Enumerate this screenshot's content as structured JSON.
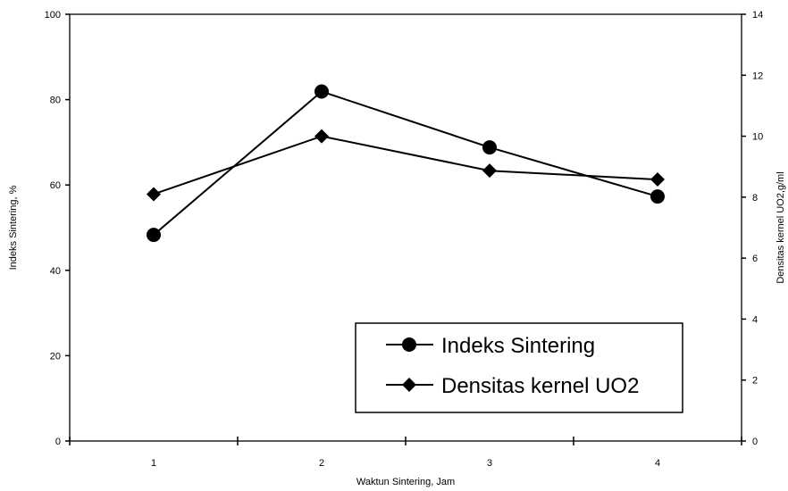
{
  "chart_data": {
    "type": "line",
    "title": "",
    "xlabel": "Waktun Sintering, Jam",
    "ylabel": "Indeks Sintering, %",
    "y2label": "Densitas  kernel UO2,g/ml",
    "x_ticks": [
      "1",
      "2",
      "3",
      "4"
    ],
    "y_ticks": [
      "0",
      "20",
      "40",
      "60",
      "80",
      "100"
    ],
    "y2_ticks": [
      "0",
      "2",
      "4",
      "6",
      "8",
      "10",
      "12",
      "14"
    ],
    "xlim": [
      0.5,
      4.5
    ],
    "ylim": [
      0,
      100
    ],
    "y2lim": [
      0,
      14
    ],
    "grid": false,
    "legend_position": "bottom-right",
    "series": [
      {
        "name": "Indeks Sintering",
        "axis": "left",
        "marker": "circle",
        "x": [
          1,
          2,
          3,
          4
        ],
        "values": [
          48.3,
          81.9,
          68.8,
          57.3
        ]
      },
      {
        "name": "Densitas kernel UO2",
        "axis": "right",
        "marker": "diamond",
        "x": [
          1,
          2,
          3,
          4
        ],
        "values": [
          8.1,
          10.0,
          8.87,
          8.58
        ]
      }
    ]
  }
}
